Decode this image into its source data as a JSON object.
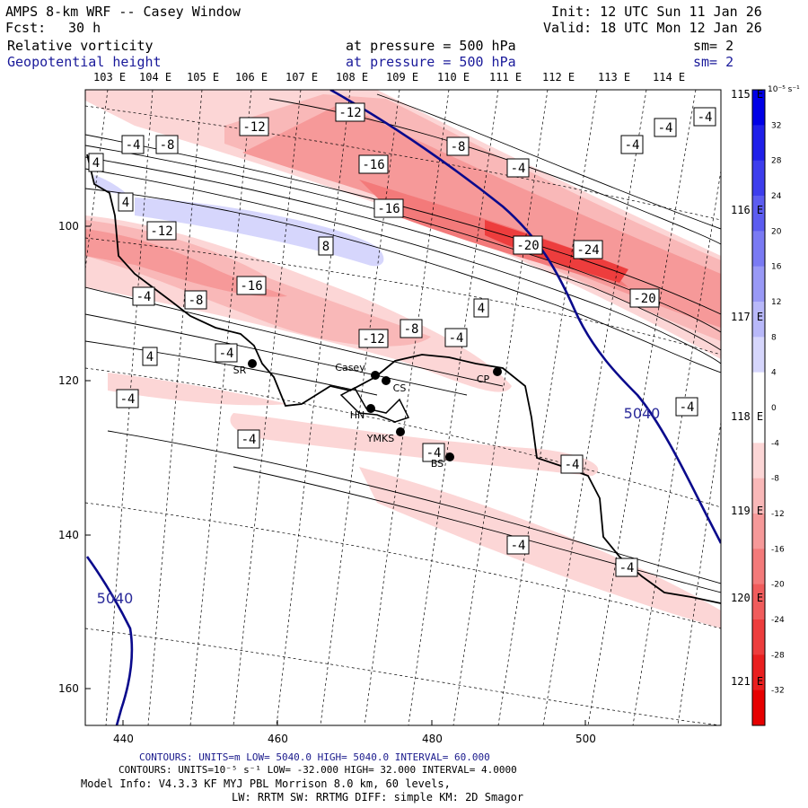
{
  "header": {
    "title": "AMPS 8-km WRF -- Casey Window",
    "init": "Init: 12 UTC Sun 11 Jan 26",
    "fcst_label": "Fcst:",
    "fcst_value": "30 h",
    "valid": "Valid: 18 UTC Mon 12 Jan 26",
    "field1": "Relative vorticity",
    "field1_level": "at pressure =  500 hPa",
    "field1_sm": "sm= 2",
    "field2": "Geopotential height",
    "field2_level": "at pressure =  500 hPa",
    "field2_sm": "sm= 2"
  },
  "longitudes": [
    "103 E",
    "104 E",
    "105 E",
    "106 E",
    "107 E",
    "108 E",
    "109 E",
    "110 E",
    "111 E",
    "112 E",
    "113 E",
    "114 E"
  ],
  "latitudes": [
    "115 E",
    "116 E",
    "117 E",
    "118 E",
    "119 E",
    "120 E",
    "121 E"
  ],
  "x_ticks": [
    "440",
    "460",
    "480",
    "500"
  ],
  "y_ticks": [
    "100",
    "120",
    "140",
    "160"
  ],
  "colorbar": {
    "unit": "10⁻⁵ s⁻¹",
    "labels": [
      "32",
      "28",
      "24",
      "20",
      "16",
      "12",
      "8",
      "4",
      "0",
      "-4",
      "-8",
      "-12",
      "-16",
      "-20",
      "-24",
      "-28",
      "-32"
    ],
    "colors": [
      "#0000e6",
      "#1f1fe9",
      "#3d3ded",
      "#5c5cf0",
      "#7a7af3",
      "#9999f6",
      "#b8b8f9",
      "#d6d6fc",
      "#ffffff",
      "#ffffff",
      "#fcd6d6",
      "#f9b8b8",
      "#f69999",
      "#f37a7a",
      "#f05c5c",
      "#ed3d3d",
      "#e91f1f",
      "#e60000"
    ]
  },
  "stations": [
    "SR",
    "Casey",
    "CS",
    "CP",
    "HN",
    "YMKS",
    "BS"
  ],
  "contour_labels": {
    "vorticity": [
      "-12",
      "-12",
      "-4",
      "-8",
      "-8",
      "-4",
      "-4",
      "-4",
      "-16",
      "-16",
      "-20",
      "-24",
      "-4",
      "-20",
      "-12",
      "-16",
      "4",
      "8",
      "-4",
      "-8",
      "4",
      "4",
      "-12",
      "-8",
      "-4",
      "-4",
      "4",
      "-4",
      "-4",
      "-4",
      "-4",
      "-4",
      "-4",
      "-4"
    ],
    "height": [
      "5040",
      "5040"
    ]
  },
  "footer": {
    "line1": "CONTOURS:  UNITS=m  LOW=  5040.0          HIGH=  5040.0          INTERVAL=   60.000",
    "line2": "CONTOURS:  UNITS=10⁻⁵ s⁻¹  LOW= -32.000          HIGH=  32.000          INTERVAL=   4.0000",
    "line3": "Model Info: V4.3.3    KF      MYJ PBL   Morrison           8.0 km,  60 levels,",
    "line4": "LW: RRTM SW: RRTMG   DIFF: simple KM: 2D Smagor"
  }
}
